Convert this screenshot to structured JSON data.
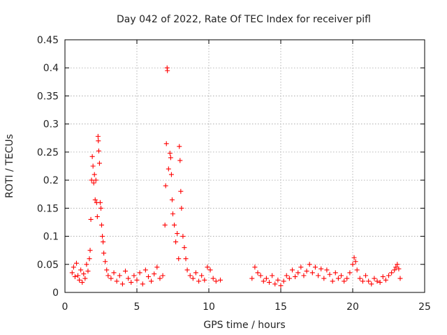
{
  "chart_data": {
    "type": "scatter",
    "title": "Day 042 of 2022, Rate Of TEC Index for receiver pifl",
    "xlabel": "GPS time / hours",
    "ylabel": "ROTI / TECUs",
    "xlim": [
      0,
      25
    ],
    "ylim": [
      0,
      0.45
    ],
    "xticks": [
      0,
      5,
      10,
      15,
      20,
      25
    ],
    "xtick_labels": [
      "0",
      "5",
      "10",
      "15",
      "20",
      "25"
    ],
    "yticks": [
      0,
      0.05,
      0.1,
      0.15,
      0.2,
      0.25,
      0.3,
      0.35,
      0.4,
      0.45
    ],
    "ytick_labels": [
      "0",
      "0.05",
      "0.1",
      "0.15",
      "0.2",
      "0.25",
      "0.3",
      "0.35",
      "0.4",
      "0.45"
    ],
    "grid": true,
    "marker": "+",
    "color": "#ff0000",
    "series": [
      {
        "name": "ROTI",
        "points": [
          [
            0.5,
            0.035
          ],
          [
            0.6,
            0.045
          ],
          [
            0.7,
            0.028
          ],
          [
            0.8,
            0.052
          ],
          [
            0.9,
            0.03
          ],
          [
            1.0,
            0.022
          ],
          [
            1.1,
            0.04
          ],
          [
            1.2,
            0.018
          ],
          [
            1.3,
            0.033
          ],
          [
            1.4,
            0.025
          ],
          [
            1.5,
            0.05
          ],
          [
            1.6,
            0.038
          ],
          [
            1.7,
            0.06
          ],
          [
            1.75,
            0.075
          ],
          [
            1.8,
            0.13
          ],
          [
            1.85,
            0.2
          ],
          [
            1.9,
            0.242
          ],
          [
            1.95,
            0.225
          ],
          [
            2.0,
            0.195
          ],
          [
            2.05,
            0.21
          ],
          [
            2.1,
            0.165
          ],
          [
            2.15,
            0.2
          ],
          [
            2.2,
            0.16
          ],
          [
            2.25,
            0.135
          ],
          [
            2.3,
            0.278
          ],
          [
            2.32,
            0.27
          ],
          [
            2.35,
            0.252
          ],
          [
            2.4,
            0.23
          ],
          [
            2.45,
            0.16
          ],
          [
            2.5,
            0.15
          ],
          [
            2.55,
            0.12
          ],
          [
            2.6,
            0.1
          ],
          [
            2.65,
            0.09
          ],
          [
            2.7,
            0.07
          ],
          [
            2.8,
            0.055
          ],
          [
            2.9,
            0.04
          ],
          [
            3.0,
            0.03
          ],
          [
            3.2,
            0.025
          ],
          [
            3.4,
            0.035
          ],
          [
            3.6,
            0.02
          ],
          [
            3.8,
            0.03
          ],
          [
            4.0,
            0.015
          ],
          [
            4.2,
            0.038
          ],
          [
            4.4,
            0.025
          ],
          [
            4.6,
            0.018
          ],
          [
            4.8,
            0.03
          ],
          [
            5.0,
            0.022
          ],
          [
            5.2,
            0.035
          ],
          [
            5.4,
            0.015
          ],
          [
            5.6,
            0.04
          ],
          [
            5.8,
            0.028
          ],
          [
            6.0,
            0.02
          ],
          [
            6.2,
            0.033
          ],
          [
            6.4,
            0.045
          ],
          [
            6.6,
            0.025
          ],
          [
            6.8,
            0.03
          ],
          [
            6.95,
            0.12
          ],
          [
            7.0,
            0.19
          ],
          [
            7.05,
            0.265
          ],
          [
            7.1,
            0.4
          ],
          [
            7.12,
            0.395
          ],
          [
            7.2,
            0.22
          ],
          [
            7.3,
            0.248
          ],
          [
            7.35,
            0.24
          ],
          [
            7.4,
            0.21
          ],
          [
            7.45,
            0.165
          ],
          [
            7.5,
            0.14
          ],
          [
            7.6,
            0.12
          ],
          [
            7.7,
            0.09
          ],
          [
            7.8,
            0.105
          ],
          [
            7.9,
            0.06
          ],
          [
            7.95,
            0.26
          ],
          [
            8.0,
            0.235
          ],
          [
            8.05,
            0.18
          ],
          [
            8.1,
            0.15
          ],
          [
            8.2,
            0.1
          ],
          [
            8.3,
            0.08
          ],
          [
            8.4,
            0.06
          ],
          [
            8.5,
            0.04
          ],
          [
            8.7,
            0.03
          ],
          [
            8.9,
            0.025
          ],
          [
            9.1,
            0.035
          ],
          [
            9.3,
            0.02
          ],
          [
            9.5,
            0.03
          ],
          [
            9.7,
            0.022
          ],
          [
            9.9,
            0.045
          ],
          [
            10.1,
            0.04
          ],
          [
            10.3,
            0.025
          ],
          [
            10.5,
            0.02
          ],
          [
            10.8,
            0.022
          ],
          [
            13.0,
            0.025
          ],
          [
            13.2,
            0.045
          ],
          [
            13.4,
            0.035
          ],
          [
            13.6,
            0.03
          ],
          [
            13.8,
            0.02
          ],
          [
            14.0,
            0.025
          ],
          [
            14.2,
            0.018
          ],
          [
            14.4,
            0.03
          ],
          [
            14.6,
            0.015
          ],
          [
            14.8,
            0.022
          ],
          [
            15.0,
            0.012
          ],
          [
            15.2,
            0.02
          ],
          [
            15.4,
            0.03
          ],
          [
            15.6,
            0.025
          ],
          [
            15.8,
            0.04
          ],
          [
            16.0,
            0.028
          ],
          [
            16.2,
            0.035
          ],
          [
            16.4,
            0.045
          ],
          [
            16.6,
            0.03
          ],
          [
            16.8,
            0.038
          ],
          [
            17.0,
            0.05
          ],
          [
            17.2,
            0.035
          ],
          [
            17.4,
            0.045
          ],
          [
            17.6,
            0.03
          ],
          [
            17.8,
            0.042
          ],
          [
            18.0,
            0.025
          ],
          [
            18.2,
            0.04
          ],
          [
            18.4,
            0.032
          ],
          [
            18.6,
            0.02
          ],
          [
            18.8,
            0.035
          ],
          [
            19.0,
            0.025
          ],
          [
            19.2,
            0.03
          ],
          [
            19.4,
            0.02
          ],
          [
            19.6,
            0.025
          ],
          [
            19.8,
            0.035
          ],
          [
            20.0,
            0.05
          ],
          [
            20.1,
            0.062
          ],
          [
            20.2,
            0.055
          ],
          [
            20.3,
            0.04
          ],
          [
            20.5,
            0.025
          ],
          [
            20.7,
            0.02
          ],
          [
            20.9,
            0.03
          ],
          [
            21.1,
            0.02
          ],
          [
            21.3,
            0.015
          ],
          [
            21.5,
            0.025
          ],
          [
            21.7,
            0.02
          ],
          [
            21.9,
            0.018
          ],
          [
            22.1,
            0.028
          ],
          [
            22.3,
            0.022
          ],
          [
            22.5,
            0.03
          ],
          [
            22.7,
            0.035
          ],
          [
            22.9,
            0.04
          ],
          [
            23.0,
            0.045
          ],
          [
            23.1,
            0.05
          ],
          [
            23.2,
            0.042
          ],
          [
            23.3,
            0.025
          ]
        ]
      }
    ]
  }
}
